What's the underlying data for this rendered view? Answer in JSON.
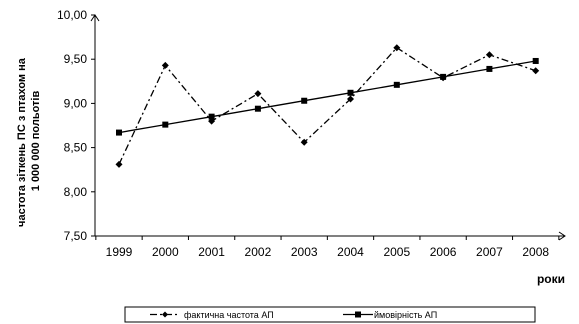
{
  "chart_data": {
    "type": "line",
    "title": "",
    "ylabel_lines": [
      "частота зіткень ПС з птахом на",
      "1 000 000 польотів"
    ],
    "xlabel": "роки",
    "ylim": [
      7.5,
      10.0
    ],
    "yticks": [
      "7,50",
      "8,00",
      "8,50",
      "9,00",
      "9,50",
      "10,00"
    ],
    "ytick_values": [
      7.5,
      8.0,
      8.5,
      9.0,
      9.5,
      10.0
    ],
    "categories": [
      "1999",
      "2000",
      "2001",
      "2002",
      "2003",
      "2004",
      "2005",
      "2006",
      "2007",
      "2008"
    ],
    "series": [
      {
        "name": "фактична частота АП",
        "marker": "diamond",
        "line_style": "dash-dot",
        "values": [
          8.31,
          9.43,
          8.8,
          9.11,
          8.56,
          9.05,
          9.63,
          9.29,
          9.55,
          9.37
        ]
      },
      {
        "name": "ймовірність АП",
        "marker": "square",
        "line_style": "solid",
        "values": [
          8.67,
          8.76,
          8.85,
          8.94,
          9.03,
          9.12,
          9.21,
          9.3,
          9.39,
          9.48
        ]
      }
    ],
    "grid": false,
    "legend_position": "bottom",
    "colors": {
      "line": "#000000",
      "background": "#ffffff"
    }
  }
}
